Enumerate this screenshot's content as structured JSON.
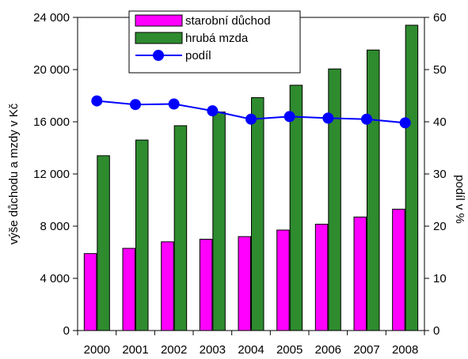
{
  "chart_data": {
    "type": "bar",
    "categories": [
      "2000",
      "2001",
      "2002",
      "2003",
      "2004",
      "2005",
      "2006",
      "2007",
      "2008"
    ],
    "series": [
      {
        "name": "starobní důchod",
        "type": "bar",
        "axis": "left",
        "color": "#ff00ff",
        "values": [
          5900,
          6300,
          6800,
          7000,
          7200,
          7700,
          8150,
          8700,
          9300
        ]
      },
      {
        "name": "hrubá mzda",
        "type": "bar",
        "axis": "left",
        "color": "#2e8b2e",
        "values": [
          13400,
          14600,
          15700,
          16750,
          17850,
          18800,
          20050,
          21500,
          23400
        ]
      },
      {
        "name": "podíl",
        "type": "line",
        "axis": "right",
        "color": "#0000ff",
        "values": [
          44.0,
          43.3,
          43.4,
          42.1,
          40.5,
          41.0,
          40.7,
          40.5,
          39.8
        ]
      }
    ],
    "ylabel": "výše důchodu a mzdy v Kč",
    "y2label": "podíl v %",
    "ylim": [
      0,
      24000
    ],
    "y2lim": [
      0,
      60
    ],
    "yticks": [
      "0",
      "4 000",
      "8 000",
      "12 000",
      "16 000",
      "20 000",
      "24 000"
    ],
    "y2ticks": [
      "0",
      "10",
      "20",
      "30",
      "40",
      "50",
      "60"
    ],
    "grid": false,
    "legend_position": "top-center"
  }
}
